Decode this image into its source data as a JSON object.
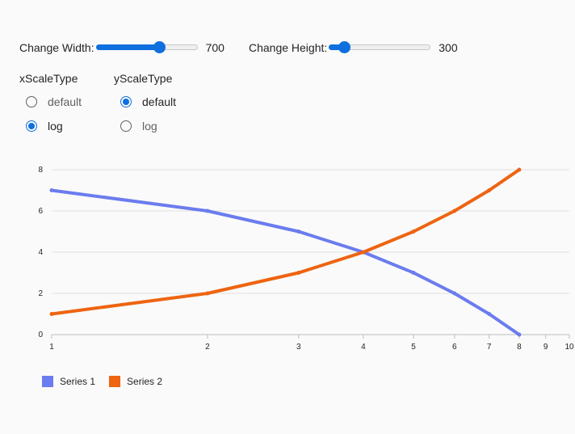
{
  "controls": {
    "width": {
      "label": "Change Width:",
      "value": "700",
      "fraction": 0.62
    },
    "height": {
      "label": "Change Height:",
      "value": "300",
      "fraction": 0.15
    }
  },
  "x_scale": {
    "title": "xScaleType",
    "options": [
      {
        "label": "default",
        "checked": false
      },
      {
        "label": "log",
        "checked": true
      }
    ]
  },
  "y_scale": {
    "title": "yScaleType",
    "options": [
      {
        "label": "default",
        "checked": true
      },
      {
        "label": "log",
        "checked": false
      }
    ]
  },
  "chart_data": {
    "type": "line",
    "x_scale": "log",
    "y_scale": "linear",
    "xlim": [
      1,
      10
    ],
    "ylim": [
      0,
      8
    ],
    "x_ticks": [
      "1",
      "2",
      "3",
      "4",
      "5",
      "6",
      "7",
      "8",
      "9",
      "10"
    ],
    "y_ticks": [
      "0",
      "2",
      "4",
      "6",
      "8"
    ],
    "grid": "horizontal",
    "legend": "bottom-left",
    "x": [
      1,
      2,
      3,
      4,
      5,
      6,
      7,
      8
    ],
    "series": [
      {
        "name": "Series 1",
        "color": "#6b7cee",
        "values": [
          7,
          6,
          5,
          4,
          3,
          2,
          1,
          0
        ]
      },
      {
        "name": "Series 2",
        "color": "#ee6411",
        "values": [
          1,
          2,
          3,
          4,
          5,
          6,
          7,
          8
        ]
      }
    ]
  }
}
